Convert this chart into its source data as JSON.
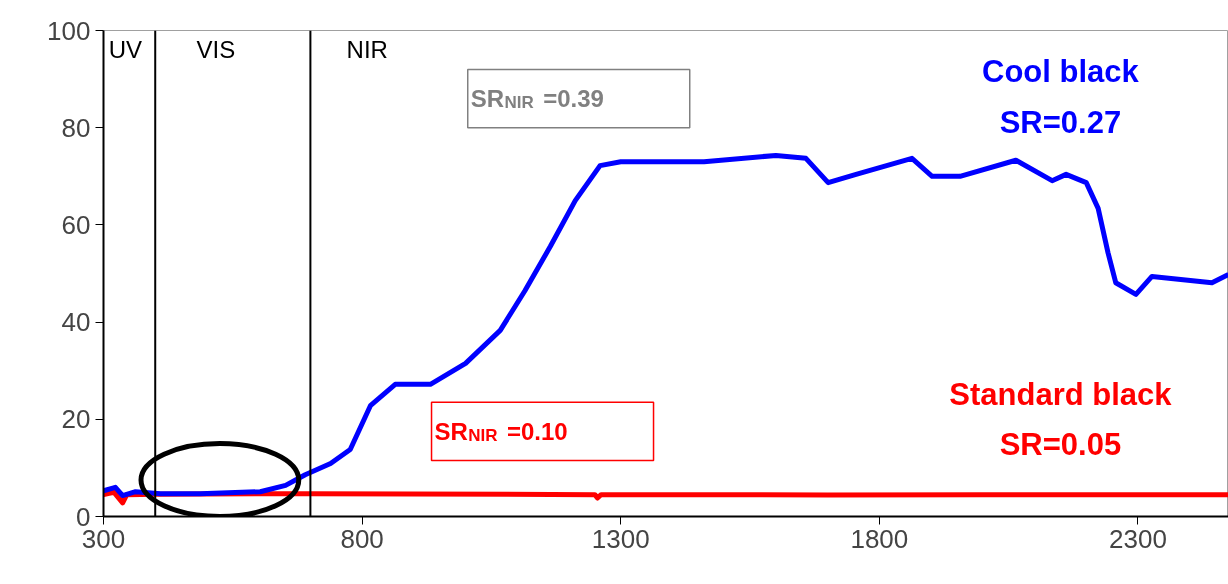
{
  "chart_data": {
    "type": "line",
    "xlim": [
      300,
      2475
    ],
    "ylim": [
      0,
      100
    ],
    "xticks": [
      300,
      800,
      1300,
      1800,
      2300
    ],
    "yticks": [
      0,
      20,
      40,
      60,
      80,
      100
    ],
    "grid": false,
    "marker": "none",
    "line_style": "solid",
    "series": [
      {
        "name": "Cool black",
        "color": "#0000ff",
        "x": [
          300,
          323,
          337,
          362,
          410,
          487,
          603,
          652,
          690,
          739,
          777,
          816,
          864,
          932,
          1000,
          1067,
          1115,
          1164,
          1212,
          1260,
          1300,
          1461,
          1600,
          1658,
          1701,
          1755,
          1863,
          1902,
          1956,
          2064,
          2134,
          2161,
          2200,
          2223,
          2242,
          2257,
          2296,
          2327,
          2443,
          2475
        ],
        "values": [
          5.3,
          6.0,
          4.3,
          5.1,
          4.7,
          4.7,
          5.1,
          6.4,
          8.6,
          10.9,
          13.8,
          22.8,
          27.2,
          27.2,
          31.5,
          38.3,
          46.5,
          55.6,
          65,
          72.2,
          73,
          73,
          74.3,
          73.7,
          68.7,
          70.4,
          73.7,
          70,
          70,
          73.3,
          69.1,
          70.4,
          68.7,
          63.4,
          54.3,
          48.1,
          45.7,
          49.4,
          48.1,
          49.8
        ]
      },
      {
        "name": "Standard black",
        "color": "#ff0000",
        "x": [
          300,
          320,
          337,
          345,
          400,
          700,
          1250,
          1255,
          1262,
          1500,
          1700,
          2000,
          2475
        ],
        "values": [
          4.5,
          5,
          2.8,
          4.5,
          4.6,
          4.7,
          4.5,
          3.8,
          4.5,
          4.5,
          4.4,
          4.5,
          4.5
        ]
      }
    ],
    "ref_lines": [
      {
        "axis": "x",
        "value": 400,
        "color": "#000000"
      },
      {
        "axis": "x",
        "value": 700,
        "color": "#000000"
      }
    ],
    "annotations": [
      "UV",
      "VIS",
      "NIR",
      "SR$_{NIR}$=0.39",
      "SR=0.27",
      "SR$_{NIR}$=0.10",
      "SR=0.05"
    ]
  }
}
